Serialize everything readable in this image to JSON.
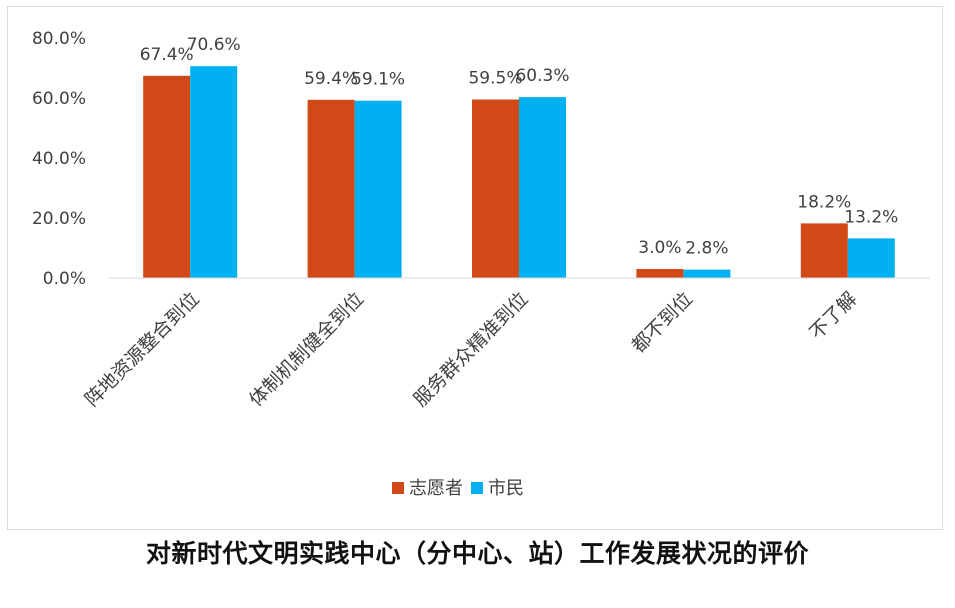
{
  "chart_data": {
    "type": "bar",
    "categories": [
      "阵地资源整合到位",
      "体制机制健全到位",
      "服务群众精准到位",
      "都不到位",
      "不了解"
    ],
    "series": [
      {
        "name": "志愿者",
        "values": [
          67.4,
          59.4,
          59.5,
          3.0,
          18.2
        ],
        "labels": [
          "67.4%",
          "59.4%",
          "59.5%",
          "3.0%",
          "18.2%"
        ],
        "color": "#d34817"
      },
      {
        "name": "市民",
        "values": [
          70.6,
          59.1,
          60.3,
          2.8,
          13.2
        ],
        "labels": [
          "70.6%",
          "59.1%",
          "60.3%",
          "2.8%",
          "13.2%"
        ],
        "color": "#00b0f0"
      }
    ],
    "yticks": [
      "0.0%",
      "20.0%",
      "40.0%",
      "60.0%",
      "80.0%"
    ],
    "ylim": [
      0,
      80
    ],
    "grid": false,
    "legend_position": "bottom"
  },
  "caption": "对新时代文明实践中心（分中心、站）工作发展状况的评价"
}
